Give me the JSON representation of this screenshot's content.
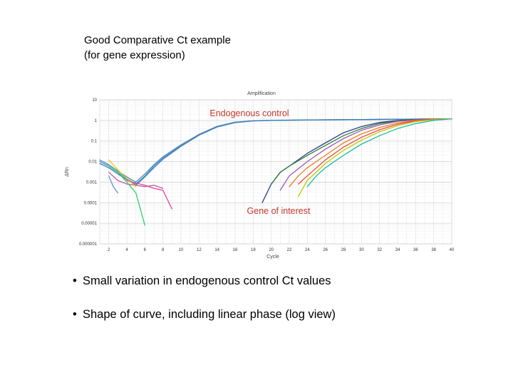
{
  "slide": {
    "title_line1": "Good Comparative Ct example",
    "title_line2": "(for gene expression)",
    "bullets": [
      "Small variation in endogenous control Ct values",
      "Shape of curve, including linear phase (log view)"
    ]
  },
  "chart_data": {
    "type": "line",
    "title": "Amplification",
    "xlabel": "Cycle",
    "ylabel": "ΔRn",
    "yscale": "log",
    "xlim": [
      1,
      40
    ],
    "ylim": [
      1e-06,
      10
    ],
    "x_ticks": [
      2,
      4,
      6,
      8,
      10,
      12,
      14,
      16,
      18,
      20,
      22,
      24,
      26,
      28,
      30,
      32,
      34,
      36,
      38,
      40
    ],
    "y_ticks": [
      "10",
      "1",
      "0.1",
      "0.01",
      "0.001",
      "0.0001",
      "0.00001",
      "0.000001"
    ],
    "grid": true,
    "annotations": [
      {
        "text": "Endogenous control",
        "color": "#c0392b"
      },
      {
        "text": "Gene of interest",
        "color": "#c0392b"
      }
    ],
    "series": [
      {
        "color": "#4a90c8",
        "group": "endogenous",
        "x": [
          1,
          2,
          3,
          4,
          5,
          6,
          7,
          8,
          10,
          12,
          14,
          16,
          18,
          20,
          25,
          30,
          35,
          40
        ],
        "y": [
          0.01,
          0.006,
          0.003,
          0.0015,
          0.0008,
          0.002,
          0.006,
          0.015,
          0.06,
          0.2,
          0.5,
          0.8,
          0.95,
          1.0,
          1.05,
          1.1,
          1.15,
          1.2
        ]
      },
      {
        "color": "#5b8fc0",
        "group": "endogenous",
        "x": [
          1,
          2,
          3,
          4,
          5,
          6,
          7,
          8,
          10,
          12,
          14,
          16,
          18,
          20,
          25,
          30,
          35,
          40
        ],
        "y": [
          0.012,
          0.007,
          0.0035,
          0.0018,
          0.001,
          0.0025,
          0.007,
          0.017,
          0.065,
          0.21,
          0.52,
          0.82,
          0.96,
          1.01,
          1.06,
          1.1,
          1.15,
          1.2
        ]
      },
      {
        "color": "#3f7db5",
        "group": "endogenous",
        "x": [
          1,
          2,
          3,
          4,
          5,
          6,
          7,
          8,
          10,
          12,
          14,
          16,
          18,
          20,
          25,
          30,
          35,
          40
        ],
        "y": [
          0.008,
          0.005,
          0.0025,
          0.0013,
          0.0007,
          0.0018,
          0.005,
          0.013,
          0.055,
          0.19,
          0.48,
          0.78,
          0.94,
          1.0,
          1.05,
          1.1,
          1.15,
          1.2
        ]
      },
      {
        "color": "#2c3e8f",
        "group": "interest",
        "x": [
          19,
          20,
          21,
          22,
          24,
          26,
          28,
          30,
          32,
          34,
          36,
          38,
          40
        ],
        "y": [
          0.0001,
          0.0008,
          0.003,
          0.006,
          0.025,
          0.08,
          0.25,
          0.5,
          0.8,
          1.0,
          1.1,
          1.15,
          1.2
        ]
      },
      {
        "color": "#2e7d32",
        "group": "interest",
        "x": [
          20,
          21,
          22,
          24,
          26,
          28,
          30,
          32,
          34,
          36,
          38,
          40
        ],
        "y": [
          0.0008,
          0.003,
          0.006,
          0.02,
          0.06,
          0.18,
          0.4,
          0.7,
          0.95,
          1.1,
          1.15,
          1.2
        ]
      },
      {
        "color": "#9b59b6",
        "group": "interest",
        "x": [
          21,
          22,
          24,
          26,
          28,
          30,
          32,
          34,
          36,
          38,
          40
        ],
        "y": [
          0.0004,
          0.002,
          0.01,
          0.04,
          0.13,
          0.33,
          0.6,
          0.9,
          1.05,
          1.15,
          1.2
        ]
      },
      {
        "color": "#e67e22",
        "group": "interest",
        "x": [
          22,
          23,
          24,
          26,
          28,
          30,
          32,
          34,
          36,
          38,
          40
        ],
        "y": [
          0.0006,
          0.002,
          0.005,
          0.02,
          0.08,
          0.22,
          0.45,
          0.75,
          1.0,
          1.12,
          1.2
        ]
      },
      {
        "color": "#e74c3c",
        "group": "interest",
        "x": [
          23,
          24,
          26,
          28,
          30,
          32,
          34,
          36,
          38,
          40
        ],
        "y": [
          0.0008,
          0.002,
          0.012,
          0.05,
          0.15,
          0.35,
          0.65,
          0.95,
          1.1,
          1.2
        ]
      },
      {
        "color": "#c7c400",
        "group": "interest",
        "x": [
          23,
          24,
          26,
          28,
          30,
          32,
          34,
          36,
          38,
          40
        ],
        "y": [
          0.0002,
          0.0012,
          0.008,
          0.035,
          0.11,
          0.28,
          0.55,
          0.88,
          1.08,
          1.2
        ]
      },
      {
        "color": "#1abc9c",
        "group": "interest",
        "x": [
          24,
          25,
          26,
          28,
          30,
          32,
          34,
          36,
          38,
          40
        ],
        "y": [
          0.0006,
          0.002,
          0.005,
          0.02,
          0.07,
          0.18,
          0.4,
          0.7,
          1.0,
          1.2
        ]
      },
      {
        "color": "#bd5fa0",
        "group": "noise",
        "x": [
          2,
          3,
          4,
          5,
          6,
          7,
          8
        ],
        "y": [
          0.003,
          0.0012,
          0.0008,
          0.0007,
          0.0006,
          0.0007,
          0.0005
        ]
      },
      {
        "color": "#2ecc71",
        "group": "noise",
        "x": [
          2,
          3,
          4,
          5,
          6
        ],
        "y": [
          0.006,
          0.003,
          0.001,
          0.0003,
          8e-06
        ]
      },
      {
        "color": "#e84393",
        "group": "noise",
        "x": [
          4,
          5,
          6,
          7,
          8,
          9
        ],
        "y": [
          0.0012,
          0.0009,
          0.0007,
          0.0005,
          0.0004,
          5e-05
        ]
      },
      {
        "color": "#6c8fd6",
        "group": "noise",
        "x": [
          2,
          2.5,
          3
        ],
        "y": [
          0.002,
          0.0006,
          0.0003
        ]
      },
      {
        "color": "#f1c40f",
        "group": "noise",
        "x": [
          2,
          3,
          4,
          5
        ],
        "y": [
          0.012,
          0.004,
          0.0015,
          0.0006
        ]
      }
    ]
  }
}
